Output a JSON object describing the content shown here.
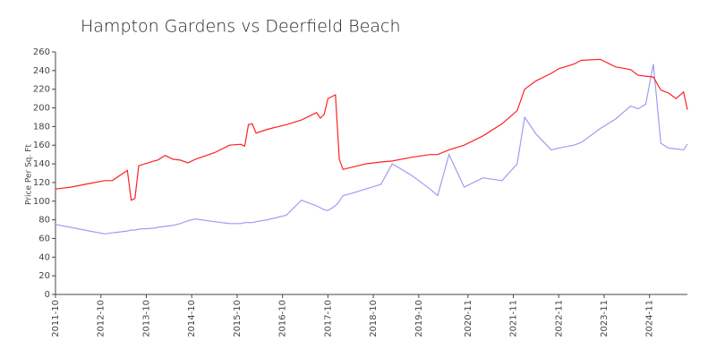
{
  "chart_data": {
    "type": "line",
    "title": "Hampton Gardens vs Deerfield Beach",
    "y_label": "Price Per Sq. Ft",
    "x": [
      "2011-10",
      "2012-02",
      "2012-07",
      "2012-11",
      "2013-01",
      "2013-05",
      "2013-06",
      "2013-07",
      "2013-08",
      "2013-12",
      "2014-01",
      "2014-03",
      "2014-05",
      "2014-07",
      "2014-09",
      "2014-11",
      "2015-04",
      "2015-08",
      "2015-11",
      "2015-12",
      "2016-01",
      "2016-02",
      "2016-03",
      "2016-06",
      "2016-11",
      "2017-03",
      "2017-07",
      "2017-08",
      "2017-09",
      "2017-10",
      "2017-12",
      "2018-01",
      "2018-02",
      "2018-04",
      "2018-08",
      "2018-12",
      "2019-03",
      "2019-08",
      "2020-01",
      "2020-03",
      "2020-06",
      "2020-10",
      "2021-03",
      "2021-08",
      "2021-12",
      "2022-02",
      "2022-05",
      "2022-09",
      "2022-11",
      "2023-03",
      "2023-05",
      "2023-10",
      "2024-02",
      "2024-06",
      "2024-08",
      "2024-10",
      "2024-12",
      "2025-02",
      "2025-04",
      "2025-06",
      "2025-08",
      "2025-09"
    ],
    "series": [
      {
        "color": "#ff2020",
        "values": [
          113,
          115,
          119,
          122,
          122,
          133,
          101,
          103,
          138,
          143,
          144,
          149,
          145,
          144,
          141,
          145,
          152,
          160,
          161,
          159,
          182,
          183,
          173,
          177,
          182,
          187,
          195,
          189,
          193,
          210,
          214,
          145,
          134,
          136,
          140,
          142,
          143,
          147,
          150,
          150,
          155,
          160,
          170,
          183,
          197,
          220,
          229,
          237,
          242,
          247,
          251,
          252,
          244,
          241,
          235,
          234,
          233,
          219,
          216,
          210,
          217,
          198
        ]
      },
      {
        "color": "#9d9df5",
        "values": [
          75,
          72,
          68,
          65,
          66,
          68,
          69,
          69,
          70,
          71,
          72,
          73,
          74,
          76,
          79,
          81,
          78,
          76,
          76,
          77,
          77,
          77,
          78,
          80,
          85,
          101,
          95,
          93,
          91,
          90,
          95,
          100,
          106,
          108,
          113,
          118,
          140,
          128,
          113,
          106,
          150,
          115,
          125,
          122,
          140,
          190,
          172,
          155,
          157,
          160,
          163,
          178,
          188,
          202,
          199,
          204,
          247,
          162,
          157,
          156,
          155,
          161
        ]
      }
    ],
    "xlim": [
      "2011-10",
      "2025-09"
    ],
    "xticks": [
      "2011-10",
      "2012-10",
      "2013-10",
      "2014-10",
      "2015-10",
      "2016-10",
      "2017-10",
      "2018-10",
      "2019-10",
      "2020-11",
      "2021-11",
      "2022-11",
      "2023-11",
      "2024-11"
    ],
    "ylim": [
      0,
      260
    ],
    "yticks": [
      0,
      20,
      40,
      60,
      80,
      100,
      120,
      140,
      160,
      180,
      200,
      220,
      240,
      260
    ]
  }
}
